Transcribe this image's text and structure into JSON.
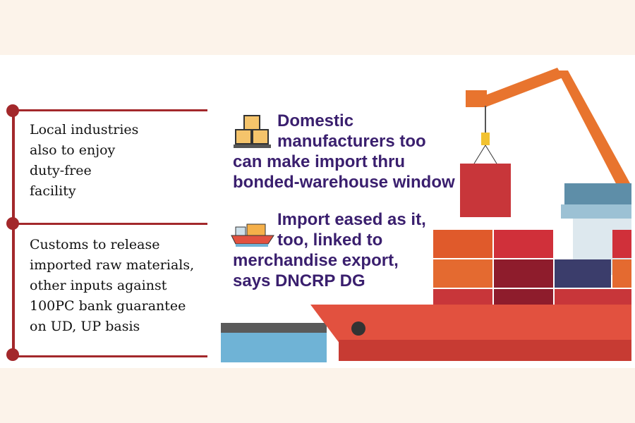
{
  "left_points": [
    {
      "text": "Local industries\nalso to enjoy\nduty-free\nfacility"
    },
    {
      "text": "Customs to release\nimported raw materials,\nother inputs against\n100PC bank guarantee\non UD, UP basis"
    }
  ],
  "right_points": [
    {
      "icon": "boxes-on-pallet-icon",
      "line1": "Domestic",
      "line2": "manufacturers too",
      "rest": "can make import thru bonded-warehouse window"
    },
    {
      "icon": "cargo-ship-icon",
      "line1": "Import eased as it,",
      "line2": "too, linked to",
      "rest": "merchandise export, says DNCRP DG"
    }
  ],
  "colors": {
    "accent": "#a3282b",
    "headline": "#3a1f6e",
    "band": "#fcf3ea"
  }
}
